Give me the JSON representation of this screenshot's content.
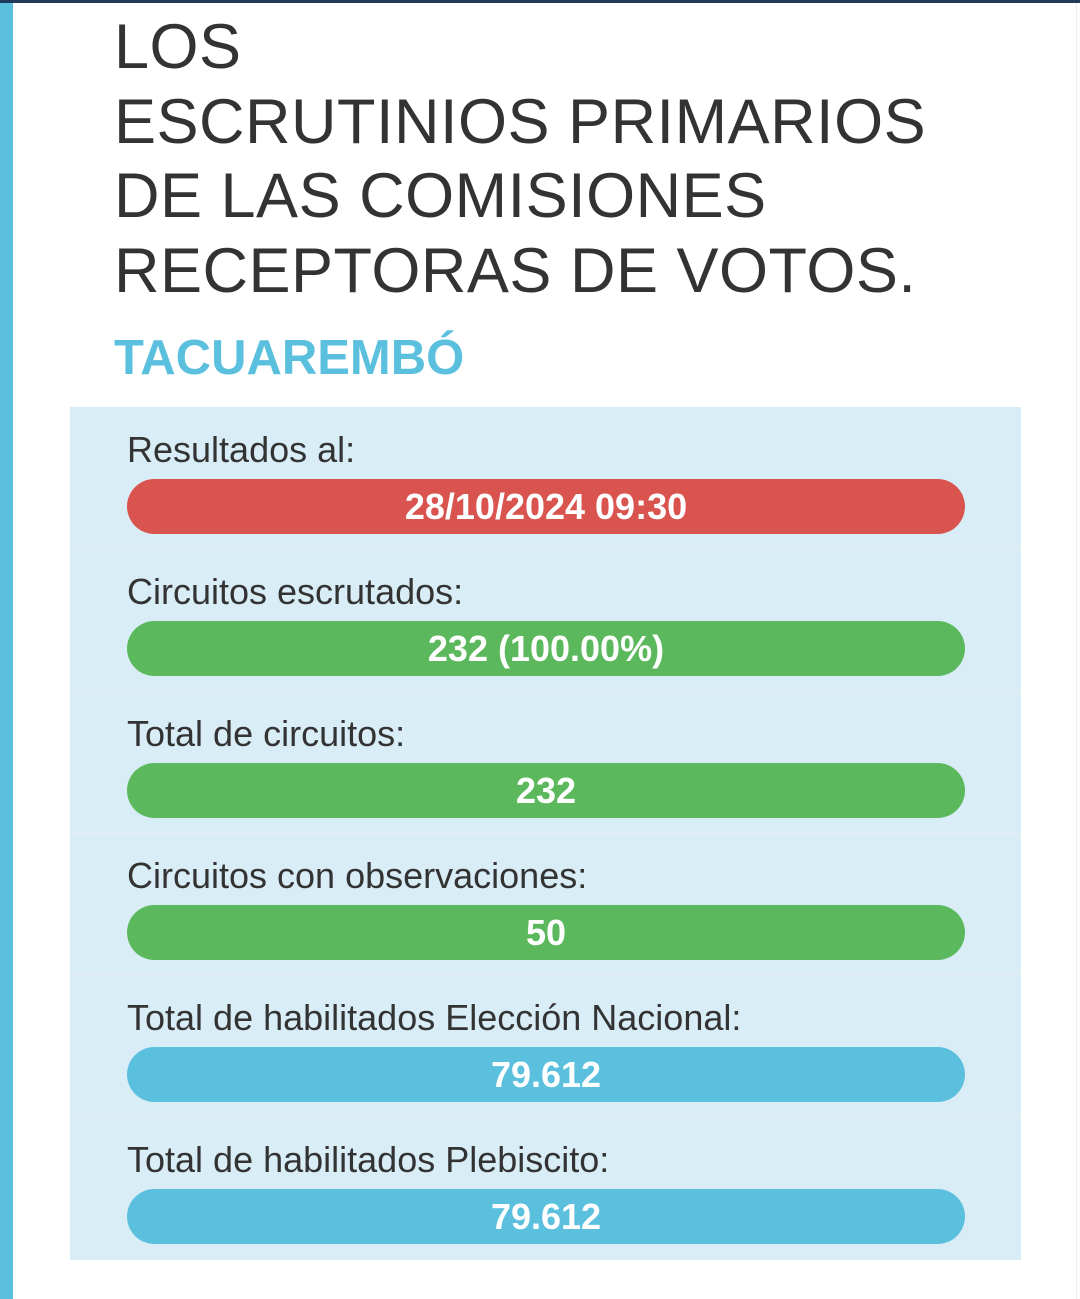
{
  "title_lines": [
    "LOS",
    "ESCRUTINIOS PRIMARIOS",
    "DE LAS COMISIONES",
    "RECEPTORAS DE VOTOS."
  ],
  "department": "TACUAREMBÓ",
  "colors": {
    "red": "#d9534f",
    "green": "#5cb85c",
    "blue": "#5bc0de",
    "panel": "#d9edf7"
  },
  "rows": [
    {
      "label": "Resultados al:",
      "value": "28/10/2024 09:30",
      "color": "#d9534f"
    },
    {
      "label": "Circuitos escrutados:",
      "value": "232 (100.00%)",
      "color": "#5cb85c"
    },
    {
      "label": "Total de circuitos:",
      "value": "232",
      "color": "#5cb85c"
    },
    {
      "label": "Circuitos con observaciones:",
      "value": "50",
      "color": "#5cb85c"
    },
    {
      "label": "Total de habilitados Elección Nacional:",
      "value": "79.612",
      "color": "#5bc0de"
    },
    {
      "label": "Total de habilitados Plebiscito:",
      "value": "79.612",
      "color": "#5bc0de"
    }
  ]
}
